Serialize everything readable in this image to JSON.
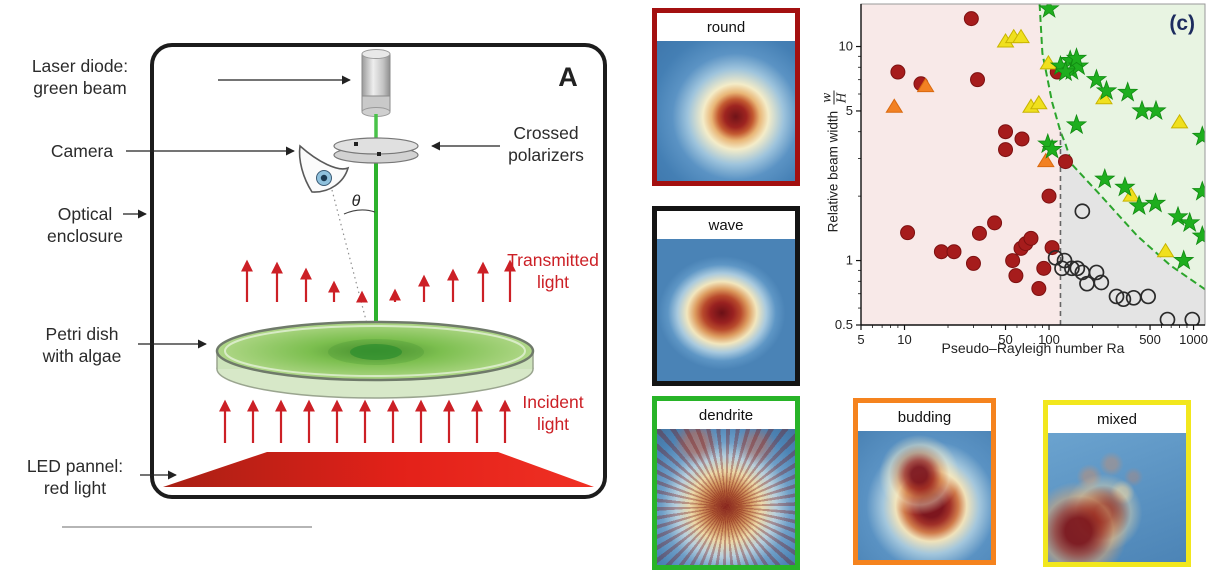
{
  "figure": {
    "panel_a_label": "A"
  },
  "diagram": {
    "labels": {
      "laser_line1": "Laser diode:",
      "laser_line2": "green beam",
      "camera": "Camera",
      "optical_line1": "Optical",
      "optical_line2": "enclosure",
      "petri_line1": "Petri dish",
      "petri_line2": "with algae",
      "led_line1": "LED pannel:",
      "led_line2": "red light",
      "polarizers_line1": "Crossed",
      "polarizers_line2": "polarizers",
      "transmitted_line1": "Transmitted",
      "transmitted_line2": "light",
      "incident_line1": "Incident",
      "incident_line2": "light",
      "theta": "θ"
    },
    "colors": {
      "beam_green": "#2fb52f",
      "light_red": "#cc2026",
      "led_panel_red": "#e32119"
    }
  },
  "morphologies": [
    {
      "label": "round",
      "border_color": "#a31010"
    },
    {
      "label": "wave",
      "border_color": "#141414"
    },
    {
      "label": "dendrite",
      "border_color": "#28b428"
    },
    {
      "label": "budding",
      "border_color": "#f5831e"
    },
    {
      "label": "mixed",
      "border_color": "#f2e71d"
    }
  ],
  "chart_data": {
    "type": "scatter",
    "panel_label": "(c)",
    "panel_label_color": "#1c2b5e",
    "xlabel": "Pseudo–Rayleigh number Ra",
    "ylabel": "Relative beam width",
    "ylabel_frac_num": "w",
    "ylabel_frac_den": "H",
    "x_scale": "log",
    "y_scale": "log",
    "xlim": [
      5,
      1200
    ],
    "ylim": [
      0.5,
      15.8
    ],
    "xticks": [
      5,
      10,
      50,
      100,
      500,
      1000
    ],
    "xtick_labels": [
      "5",
      "10",
      "50",
      "100",
      "500",
      "1000"
    ],
    "xminor": [
      6,
      7,
      8,
      9,
      20,
      30,
      40,
      60,
      70,
      80,
      90,
      200,
      300,
      400,
      600,
      700,
      800,
      900
    ],
    "yticks": [
      10,
      5,
      1,
      0.5
    ],
    "ytick_labels": [
      "10",
      "5",
      "1",
      "0.5"
    ],
    "yminor": [
      0.6,
      0.7,
      0.8,
      0.9,
      2,
      3,
      4,
      6,
      7,
      8,
      9
    ],
    "regions": {
      "round_bg": "#f8e9e8",
      "dendrite_bg": "#e8f4e2",
      "none_bg": "#e4e4e4"
    },
    "boundary_curve": {
      "color": "#2ca52c",
      "style": "dashed",
      "points": [
        [
          86,
          15.8
        ],
        [
          90,
          9.3
        ],
        [
          105,
          5.5
        ],
        [
          120,
          4.0
        ],
        [
          130,
          3.5
        ],
        [
          145,
          2.8
        ],
        [
          230,
          2.0
        ],
        [
          410,
          1.3
        ],
        [
          690,
          0.95
        ],
        [
          1250,
          0.72
        ]
      ]
    },
    "vline": {
      "x": 120,
      "color": "#666666",
      "style": "dashed"
    },
    "series": [
      {
        "name": "round",
        "marker": "circle",
        "color": "#a61c1c",
        "edge": "#7d1111",
        "points": [
          [
            29,
            13.5
          ],
          [
            9,
            7.6
          ],
          [
            13,
            6.7
          ],
          [
            32,
            7.0
          ],
          [
            50,
            4.0
          ],
          [
            50,
            3.3
          ],
          [
            65,
            3.7
          ],
          [
            114,
            7.6
          ],
          [
            130,
            2.9
          ],
          [
            10.5,
            1.35
          ],
          [
            18,
            1.1
          ],
          [
            22,
            1.1
          ],
          [
            30,
            0.97
          ],
          [
            33,
            1.34
          ],
          [
            42,
            1.5
          ],
          [
            56,
            1.0
          ],
          [
            59,
            0.85
          ],
          [
            64,
            1.14
          ],
          [
            69,
            1.2
          ],
          [
            75,
            1.27
          ],
          [
            85,
            0.74
          ],
          [
            92,
            0.92
          ],
          [
            105,
            1.15
          ],
          [
            100,
            2.0
          ]
        ]
      },
      {
        "name": "budding",
        "marker": "triangle",
        "color": "#f28123",
        "edge": "#d96a10",
        "points": [
          [
            8.5,
            5.2
          ],
          [
            14,
            6.5
          ],
          [
            95,
            2.9
          ]
        ]
      },
      {
        "name": "mixed",
        "marker": "triangle",
        "color": "#f0e01e",
        "edge": "#c8b400",
        "points": [
          [
            50,
            10.5
          ],
          [
            57,
            11
          ],
          [
            64,
            11
          ],
          [
            99,
            8.3
          ],
          [
            75,
            5.2
          ],
          [
            85,
            5.4
          ],
          [
            240,
            5.7
          ],
          [
            370,
            2.0
          ],
          [
            800,
            4.4
          ],
          [
            640,
            1.1
          ]
        ]
      },
      {
        "name": "dendrite",
        "marker": "star",
        "color": "#1eae1e",
        "edge": "#128a12",
        "points": [
          [
            100,
            15
          ],
          [
            120,
            8.1
          ],
          [
            140,
            8.6
          ],
          [
            144,
            7.7
          ],
          [
            160,
            8.1
          ],
          [
            130,
            7.6
          ],
          [
            155,
            8.8
          ],
          [
            213,
            7.0
          ],
          [
            250,
            6.2
          ],
          [
            350,
            6.1
          ],
          [
            440,
            5.0
          ],
          [
            550,
            5.0
          ],
          [
            1150,
            3.8
          ],
          [
            155,
            4.3
          ],
          [
            98,
            3.5
          ],
          [
            105,
            3.3
          ],
          [
            243,
            2.4
          ],
          [
            335,
            2.2
          ],
          [
            420,
            1.8
          ],
          [
            545,
            1.85
          ],
          [
            780,
            1.6
          ],
          [
            940,
            1.5
          ],
          [
            1150,
            2.1
          ],
          [
            1150,
            1.3
          ],
          [
            855,
            1.0
          ]
        ]
      },
      {
        "name": "no-pattern",
        "marker": "open-circle",
        "color": "#2b2b2b",
        "edge": "#2b2b2b",
        "points": [
          [
            170,
            1.7
          ],
          [
            111,
            1.03
          ],
          [
            123,
            0.92
          ],
          [
            128,
            1.0
          ],
          [
            144,
            0.92
          ],
          [
            157,
            0.92
          ],
          [
            170,
            0.88
          ],
          [
            183,
            0.78
          ],
          [
            213,
            0.88
          ],
          [
            230,
            0.79
          ],
          [
            293,
            0.68
          ],
          [
            327,
            0.66
          ],
          [
            385,
            0.67
          ],
          [
            485,
            0.68
          ],
          [
            660,
            0.53
          ],
          [
            980,
            0.53
          ]
        ]
      }
    ]
  }
}
